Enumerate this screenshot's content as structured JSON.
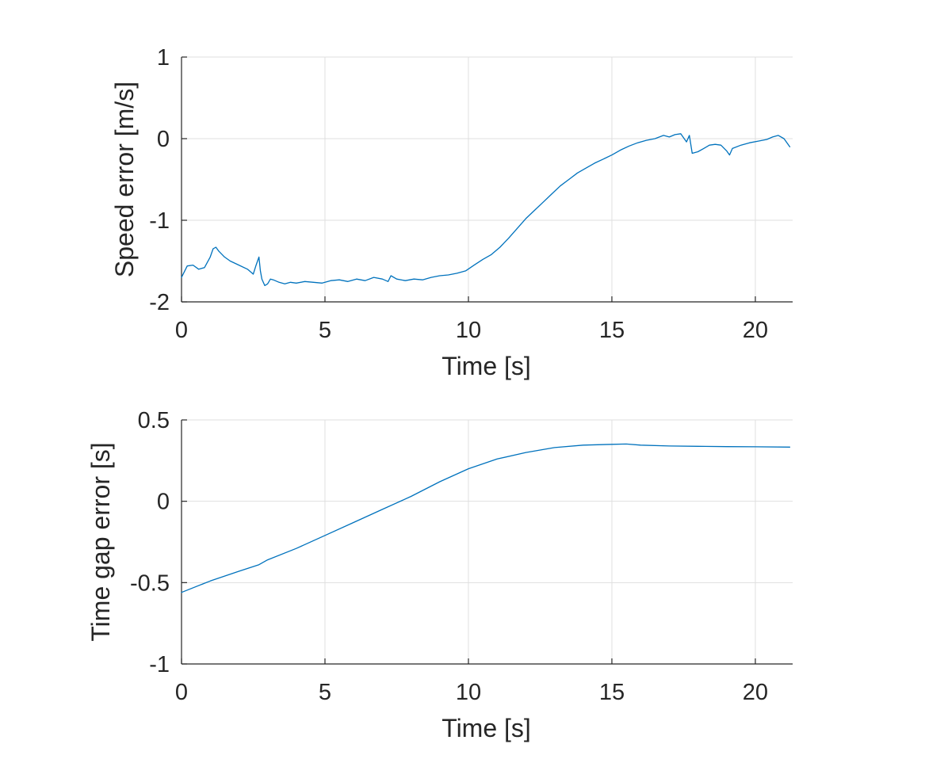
{
  "colors": {
    "series": "#0072BD",
    "axis": "#262626",
    "grid": "#dfdfdf"
  },
  "chart_data": [
    {
      "type": "line",
      "xlabel": "Time [s]",
      "ylabel": "Speed error [m/s]",
      "xlim": [
        0,
        21.3
      ],
      "ylim": [
        -2,
        1
      ],
      "xticks": [
        0,
        5,
        10,
        15,
        20
      ],
      "xtick_labels": [
        "0",
        "5",
        "10",
        "15",
        "20"
      ],
      "yticks": [
        -2,
        -1,
        0,
        1
      ],
      "ytick_labels": [
        "-2",
        "-1",
        "0",
        "1"
      ],
      "grid": true,
      "series": [
        {
          "name": "Speed error",
          "x": [
            0,
            0.2,
            0.4,
            0.6,
            0.8,
            1.0,
            1.1,
            1.2,
            1.3,
            1.5,
            1.7,
            2.0,
            2.3,
            2.5,
            2.6,
            2.7,
            2.75,
            2.8,
            2.9,
            3.0,
            3.1,
            3.2,
            3.4,
            3.6,
            3.8,
            4.0,
            4.3,
            4.6,
            4.9,
            5.2,
            5.5,
            5.8,
            6.1,
            6.4,
            6.7,
            7.0,
            7.2,
            7.3,
            7.5,
            7.8,
            8.1,
            8.4,
            8.7,
            9.0,
            9.3,
            9.6,
            9.9,
            10.2,
            10.5,
            10.8,
            11.1,
            11.4,
            11.7,
            12.0,
            12.3,
            12.6,
            12.9,
            13.2,
            13.5,
            13.8,
            14.1,
            14.4,
            14.7,
            15.0,
            15.3,
            15.6,
            15.9,
            16.2,
            16.5,
            16.8,
            17.0,
            17.2,
            17.4,
            17.6,
            17.7,
            17.8,
            18.0,
            18.2,
            18.4,
            18.6,
            18.8,
            19.0,
            19.1,
            19.2,
            19.5,
            19.8,
            20.1,
            20.4,
            20.6,
            20.8,
            21.0,
            21.2
          ],
          "y": [
            -1.7,
            -1.56,
            -1.55,
            -1.6,
            -1.58,
            -1.45,
            -1.35,
            -1.33,
            -1.38,
            -1.45,
            -1.5,
            -1.55,
            -1.6,
            -1.66,
            -1.55,
            -1.45,
            -1.62,
            -1.72,
            -1.8,
            -1.78,
            -1.72,
            -1.73,
            -1.76,
            -1.78,
            -1.76,
            -1.77,
            -1.75,
            -1.76,
            -1.77,
            -1.74,
            -1.73,
            -1.75,
            -1.72,
            -1.74,
            -1.7,
            -1.72,
            -1.75,
            -1.68,
            -1.72,
            -1.74,
            -1.72,
            -1.73,
            -1.7,
            -1.68,
            -1.67,
            -1.65,
            -1.62,
            -1.55,
            -1.48,
            -1.42,
            -1.33,
            -1.22,
            -1.1,
            -0.98,
            -0.88,
            -0.78,
            -0.68,
            -0.58,
            -0.5,
            -0.42,
            -0.36,
            -0.3,
            -0.25,
            -0.2,
            -0.14,
            -0.09,
            -0.05,
            -0.02,
            0.0,
            0.04,
            0.02,
            0.05,
            0.06,
            -0.04,
            0.04,
            -0.18,
            -0.16,
            -0.12,
            -0.08,
            -0.07,
            -0.08,
            -0.15,
            -0.2,
            -0.12,
            -0.08,
            -0.05,
            -0.03,
            -0.01,
            0.02,
            0.04,
            0.0,
            -0.1
          ]
        }
      ]
    },
    {
      "type": "line",
      "xlabel": "Time [s]",
      "ylabel": "Time gap error [s]",
      "xlim": [
        0,
        21.3
      ],
      "ylim": [
        -1,
        0.5
      ],
      "xticks": [
        0,
        5,
        10,
        15,
        20
      ],
      "xtick_labels": [
        "0",
        "5",
        "10",
        "15",
        "20"
      ],
      "yticks": [
        -1,
        -0.5,
        0,
        0.5
      ],
      "ytick_labels": [
        "-1",
        "-0.5",
        "0",
        "0.5"
      ],
      "grid": true,
      "series": [
        {
          "name": "Time gap error",
          "x": [
            0,
            1,
            2,
            2.7,
            3,
            4,
            5,
            6,
            7,
            8,
            9,
            10,
            11,
            12,
            13,
            14,
            15,
            15.5,
            16,
            17,
            18,
            19,
            20,
            21.2
          ],
          "y": [
            -0.56,
            -0.49,
            -0.43,
            -0.39,
            -0.36,
            -0.29,
            -0.21,
            -0.13,
            -0.05,
            0.03,
            0.12,
            0.2,
            0.26,
            0.3,
            0.33,
            0.345,
            0.35,
            0.352,
            0.345,
            0.34,
            0.338,
            0.336,
            0.335,
            0.333
          ]
        }
      ]
    }
  ]
}
